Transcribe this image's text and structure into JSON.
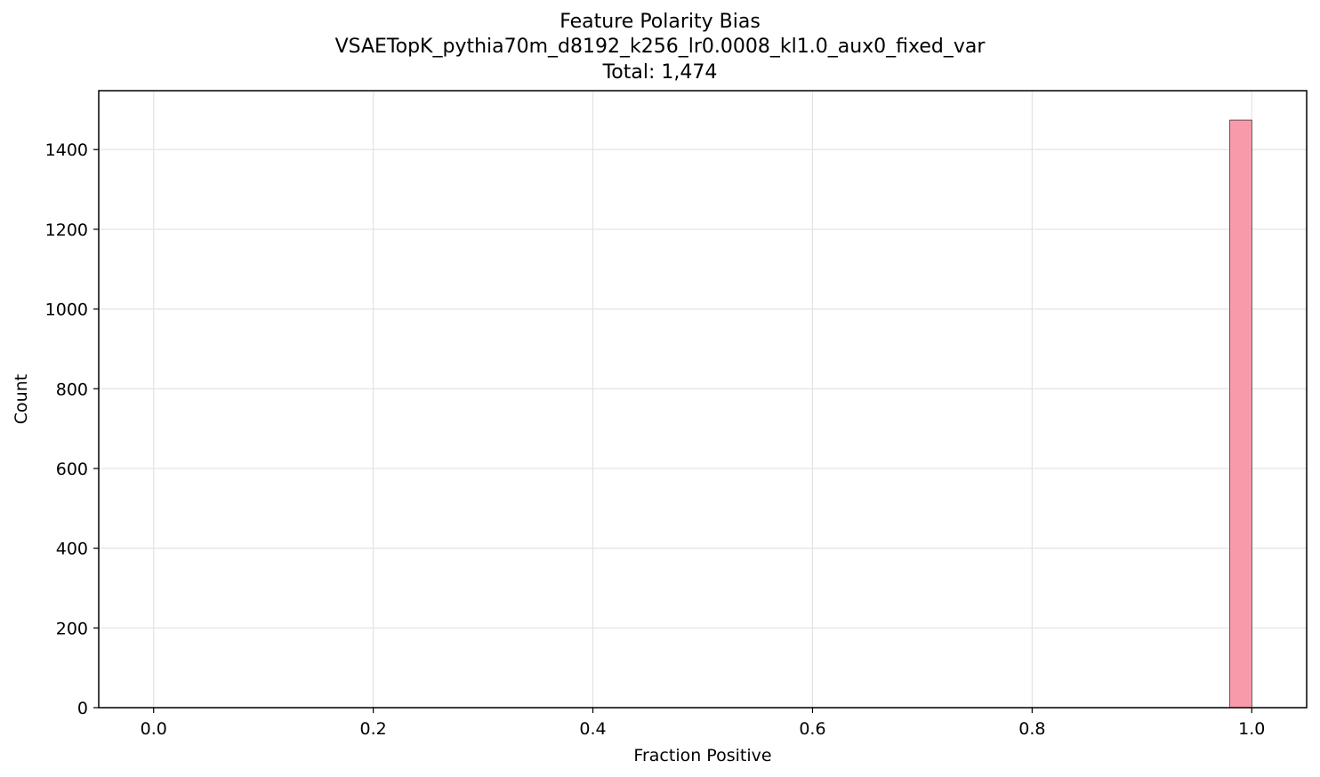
{
  "chart_data": {
    "type": "bar",
    "title": "Feature Polarity Bias",
    "subtitle": "VSAETopK_pythia70m_d8192_k256_lr0.0008_kl1.0_aux0_fixed_var",
    "total_label": "Total: 1,474",
    "xlabel": "Fraction Positive",
    "ylabel": "Count",
    "xlim": [
      -0.05,
      1.05
    ],
    "ylim": [
      0,
      1547.7
    ],
    "xticks": [
      0.0,
      0.2,
      0.4,
      0.6,
      0.8,
      1.0
    ],
    "xtick_labels": [
      "0.0",
      "0.2",
      "0.4",
      "0.6",
      "0.8",
      "1.0"
    ],
    "yticks": [
      0,
      200,
      400,
      600,
      800,
      1000,
      1200,
      1400
    ],
    "ytick_labels": [
      "0",
      "200",
      "400",
      "600",
      "800",
      "1000",
      "1200",
      "1400"
    ],
    "bins": [
      {
        "x0": 0.98,
        "x1": 1.0,
        "count": 1474
      }
    ],
    "grid": true,
    "bar_color": "#f89aaa",
    "bar_edge_color": "#000000"
  }
}
